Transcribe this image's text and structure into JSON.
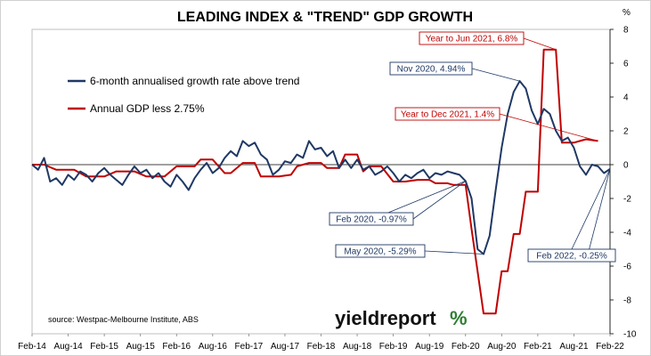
{
  "chart_data": {
    "type": "line",
    "title": "LEADING INDEX & \"TREND\" GDP GROWTH",
    "ylabel": "%",
    "ylim": [
      -10,
      8
    ],
    "yticks": [
      8,
      6,
      4,
      2,
      0,
      -2,
      -4,
      -6,
      -8,
      -10
    ],
    "xlim": [
      "2014-02",
      "2022-02"
    ],
    "xticks": [
      "Feb-14",
      "Aug-14",
      "Feb-15",
      "Aug-15",
      "Feb-16",
      "Aug-16",
      "Feb-17",
      "Aug-17",
      "Feb-18",
      "Aug-18",
      "Feb-19",
      "Aug-19",
      "Feb-20",
      "Aug-20",
      "Feb-21",
      "Aug-21",
      "Feb-22"
    ],
    "grid": false,
    "legend_position": "top-left",
    "series": [
      {
        "name": "6-month annualised growth rate above trend",
        "color": "#1f3864",
        "points": [
          [
            "2014-02",
            0.0
          ],
          [
            "2014-03",
            -0.3
          ],
          [
            "2014-04",
            0.4
          ],
          [
            "2014-05",
            -1.0
          ],
          [
            "2014-06",
            -0.8
          ],
          [
            "2014-07",
            -1.2
          ],
          [
            "2014-08",
            -0.6
          ],
          [
            "2014-09",
            -0.9
          ],
          [
            "2014-10",
            -0.4
          ],
          [
            "2014-11",
            -0.6
          ],
          [
            "2014-12",
            -1.0
          ],
          [
            "2015-01",
            -0.5
          ],
          [
            "2015-02",
            -0.2
          ],
          [
            "2015-03",
            -0.6
          ],
          [
            "2015-04",
            -0.9
          ],
          [
            "2015-05",
            -1.2
          ],
          [
            "2015-06",
            -0.6
          ],
          [
            "2015-07",
            -0.1
          ],
          [
            "2015-08",
            -0.5
          ],
          [
            "2015-09",
            -0.3
          ],
          [
            "2015-10",
            -0.8
          ],
          [
            "2015-11",
            -0.5
          ],
          [
            "2015-12",
            -1.0
          ],
          [
            "2016-01",
            -1.3
          ],
          [
            "2016-02",
            -0.6
          ],
          [
            "2016-03",
            -1.0
          ],
          [
            "2016-04",
            -1.5
          ],
          [
            "2016-05",
            -0.8
          ],
          [
            "2016-06",
            -0.3
          ],
          [
            "2016-07",
            0.1
          ],
          [
            "2016-08",
            -0.5
          ],
          [
            "2016-09",
            -0.2
          ],
          [
            "2016-10",
            0.4
          ],
          [
            "2016-11",
            0.8
          ],
          [
            "2016-12",
            0.5
          ],
          [
            "2017-01",
            1.4
          ],
          [
            "2017-02",
            1.1
          ],
          [
            "2017-03",
            1.3
          ],
          [
            "2017-04",
            0.6
          ],
          [
            "2017-05",
            0.3
          ],
          [
            "2017-06",
            -0.6
          ],
          [
            "2017-07",
            -0.3
          ],
          [
            "2017-08",
            0.2
          ],
          [
            "2017-09",
            0.1
          ],
          [
            "2017-10",
            0.6
          ],
          [
            "2017-11",
            0.4
          ],
          [
            "2017-12",
            1.4
          ],
          [
            "2018-01",
            0.9
          ],
          [
            "2018-02",
            1.0
          ],
          [
            "2018-03",
            0.5
          ],
          [
            "2018-04",
            0.8
          ],
          [
            "2018-05",
            -0.2
          ],
          [
            "2018-06",
            0.3
          ],
          [
            "2018-07",
            -0.2
          ],
          [
            "2018-08",
            0.3
          ],
          [
            "2018-09",
            -0.3
          ],
          [
            "2018-10",
            -0.1
          ],
          [
            "2018-11",
            -0.6
          ],
          [
            "2018-12",
            -0.4
          ],
          [
            "2019-01",
            -0.1
          ],
          [
            "2019-02",
            -0.5
          ],
          [
            "2019-03",
            -1.0
          ],
          [
            "2019-04",
            -0.6
          ],
          [
            "2019-05",
            -0.8
          ],
          [
            "2019-06",
            -0.5
          ],
          [
            "2019-07",
            -0.3
          ],
          [
            "2019-08",
            -0.8
          ],
          [
            "2019-09",
            -0.5
          ],
          [
            "2019-10",
            -0.6
          ],
          [
            "2019-11",
            -0.4
          ],
          [
            "2019-12",
            -0.5
          ],
          [
            "2020-01",
            -0.6
          ],
          [
            "2020-02",
            -0.97
          ],
          [
            "2020-03",
            -2.0
          ],
          [
            "2020-04",
            -5.0
          ],
          [
            "2020-05",
            -5.29
          ],
          [
            "2020-06",
            -4.2
          ],
          [
            "2020-07",
            -1.5
          ],
          [
            "2020-08",
            1.0
          ],
          [
            "2020-09",
            3.0
          ],
          [
            "2020-10",
            4.3
          ],
          [
            "2020-11",
            4.94
          ],
          [
            "2020-12",
            4.5
          ],
          [
            "2021-01",
            3.2
          ],
          [
            "2021-02",
            2.4
          ],
          [
            "2021-03",
            3.3
          ],
          [
            "2021-04",
            3.0
          ],
          [
            "2021-05",
            2.0
          ],
          [
            "2021-06",
            1.4
          ],
          [
            "2021-07",
            1.6
          ],
          [
            "2021-08",
            1.0
          ],
          [
            "2021-09",
            -0.1
          ],
          [
            "2021-10",
            -0.6
          ],
          [
            "2021-11",
            0.0
          ],
          [
            "2021-12",
            -0.1
          ],
          [
            "2022-01",
            -0.5
          ],
          [
            "2022-02",
            -0.25
          ]
        ]
      },
      {
        "name": "Annual GDP less 2.75%",
        "color": "#c00000",
        "points": [
          [
            "2014-02",
            0.0
          ],
          [
            "2014-04",
            0.0
          ],
          [
            "2014-06",
            -0.3
          ],
          [
            "2014-09",
            -0.3
          ],
          [
            "2014-11",
            -0.7
          ],
          [
            "2015-02",
            -0.7
          ],
          [
            "2015-04",
            -0.4
          ],
          [
            "2015-07",
            -0.4
          ],
          [
            "2015-09",
            -0.7
          ],
          [
            "2015-12",
            -0.7
          ],
          [
            "2016-02",
            -0.1
          ],
          [
            "2016-05",
            -0.1
          ],
          [
            "2016-06",
            0.3
          ],
          [
            "2016-08",
            0.3
          ],
          [
            "2016-10",
            -0.5
          ],
          [
            "2016-11",
            -0.5
          ],
          [
            "2017-01",
            0.1
          ],
          [
            "2017-03",
            0.1
          ],
          [
            "2017-04",
            -0.7
          ],
          [
            "2017-07",
            -0.7
          ],
          [
            "2017-09",
            -0.6
          ],
          [
            "2017-10",
            -0.1
          ],
          [
            "2017-12",
            0.1
          ],
          [
            "2018-02",
            0.1
          ],
          [
            "2018-03",
            -0.2
          ],
          [
            "2018-05",
            -0.2
          ],
          [
            "2018-06",
            0.6
          ],
          [
            "2018-08",
            0.6
          ],
          [
            "2018-09",
            -0.4
          ],
          [
            "2018-10",
            -0.1
          ],
          [
            "2018-12",
            -0.1
          ],
          [
            "2019-02",
            -1.0
          ],
          [
            "2019-04",
            -1.0
          ],
          [
            "2019-06",
            -0.9
          ],
          [
            "2019-08",
            -0.9
          ],
          [
            "2019-09",
            -1.1
          ],
          [
            "2019-11",
            -1.1
          ],
          [
            "2019-12",
            -1.2
          ],
          [
            "2020-02",
            -1.2
          ],
          [
            "2020-03",
            -3.8
          ],
          [
            "2020-05",
            -8.8
          ],
          [
            "2020-06",
            -8.8
          ],
          [
            "2020-07",
            -8.8
          ],
          [
            "2020-08",
            -6.3
          ],
          [
            "2020-09",
            -6.3
          ],
          [
            "2020-10",
            -4.1
          ],
          [
            "2020-11",
            -4.1
          ],
          [
            "2020-12",
            -1.6
          ],
          [
            "2021-02",
            -1.6
          ],
          [
            "2021-03",
            6.8
          ],
          [
            "2021-04",
            6.8
          ],
          [
            "2021-05",
            6.8
          ],
          [
            "2021-06",
            1.3
          ],
          [
            "2021-08",
            1.3
          ],
          [
            "2021-09",
            1.4
          ],
          [
            "2021-10",
            1.5
          ],
          [
            "2021-12",
            1.4
          ]
        ]
      }
    ],
    "annotations": [
      {
        "text": "Year to Jun 2021, 6.8%",
        "color": "#c00000",
        "at": [
          "2021-05",
          6.8
        ]
      },
      {
        "text": "Nov 2020, 4.94%",
        "color": "#1f3864",
        "at": [
          "2020-11",
          4.94
        ]
      },
      {
        "text": "Year to Dec 2021, 1.4%",
        "color": "#c00000",
        "at": [
          "2021-12",
          1.4
        ]
      },
      {
        "text": "Feb 2020, -0.97%",
        "color": "#1f3864",
        "at": [
          "2020-02",
          -0.97
        ]
      },
      {
        "text": "May 2020, -5.29%",
        "color": "#1f3864",
        "at": [
          "2020-05",
          -5.29
        ]
      },
      {
        "text": "Feb 2022, -0.25%",
        "color": "#1f3864",
        "at": [
          "2022-02",
          -0.25
        ]
      }
    ],
    "source": "source: Westpac-Melbourne Institute, ABS",
    "brand": {
      "main": "yieldreport",
      "symbol": "%"
    }
  }
}
